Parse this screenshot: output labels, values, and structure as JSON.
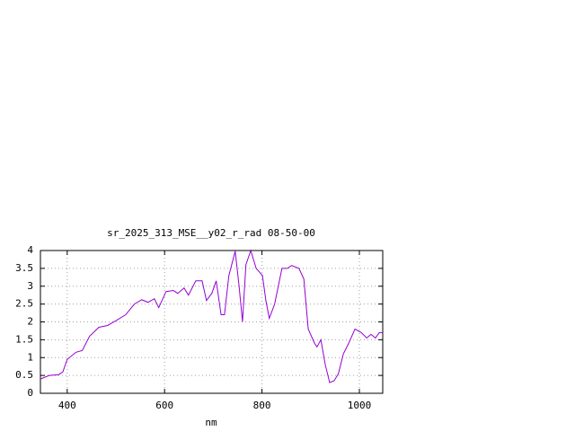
{
  "chart_data": {
    "type": "line",
    "title": "sr_2025_313_MSE__y02_r_rad 08-50-00",
    "x_label": "nm",
    "x": [
      345,
      363,
      382,
      391,
      400,
      418,
      431,
      446,
      465,
      483,
      502,
      520,
      538,
      553,
      566,
      579,
      588,
      603,
      618,
      627,
      640,
      649,
      664,
      677,
      686,
      697,
      706,
      716,
      723,
      732,
      745,
      753,
      760,
      767,
      777,
      788,
      801,
      808,
      815,
      826,
      841,
      852,
      861,
      876,
      886,
      895,
      908,
      913,
      921,
      930,
      939,
      948,
      957,
      967,
      978,
      991,
      1004,
      1015,
      1024,
      1033,
      1041,
      1048
    ],
    "series": [
      {
        "color": "#9400d3",
        "values": [
          0.4,
          0.5,
          0.52,
          0.6,
          0.95,
          1.15,
          1.2,
          1.6,
          1.85,
          1.9,
          2.05,
          2.2,
          2.5,
          2.62,
          2.55,
          2.65,
          2.4,
          2.85,
          2.88,
          2.8,
          2.95,
          2.75,
          3.15,
          3.15,
          2.6,
          2.8,
          3.15,
          2.2,
          2.2,
          3.3,
          3.98,
          3.0,
          2.0,
          3.6,
          4.0,
          3.5,
          3.3,
          2.6,
          2.1,
          2.5,
          3.5,
          3.5,
          3.58,
          3.5,
          3.2,
          1.8,
          1.4,
          1.3,
          1.5,
          0.8,
          0.3,
          0.35,
          0.55,
          1.1,
          1.4,
          1.8,
          1.7,
          1.55,
          1.65,
          1.55,
          1.7,
          1.7
        ]
      }
    ],
    "xlim": [
      345,
      1048
    ],
    "xticks": [
      400,
      600,
      800,
      1000
    ],
    "ylim": [
      0,
      4
    ],
    "yticks": [
      0,
      0.5,
      1,
      1.5,
      2,
      2.5,
      3,
      3.5,
      4
    ],
    "grid": true
  }
}
